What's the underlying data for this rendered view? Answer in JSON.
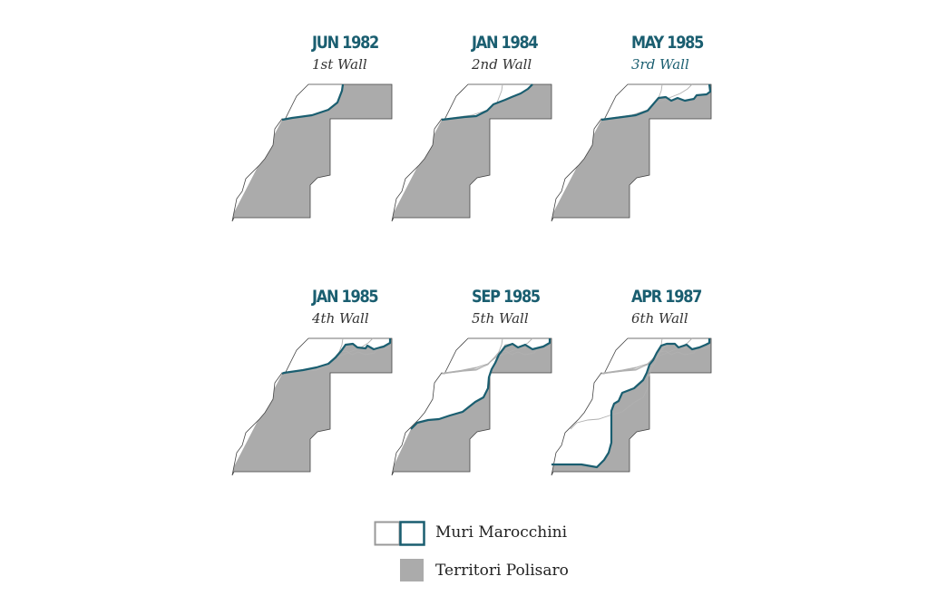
{
  "colors": {
    "accent": "#1a5e70",
    "territory": "#ababab",
    "outline": "#444444",
    "old_wall": "#b0b0b0",
    "text": "#333333"
  },
  "panels": [
    {
      "date": "JUN 1982",
      "wall": "1st Wall",
      "wall_color": "#333333",
      "stage": 1
    },
    {
      "date": "JAN 1984",
      "wall": "2nd Wall",
      "wall_color": "#333333",
      "stage": 2
    },
    {
      "date": "MAY 1985",
      "wall": "3rd Wall",
      "wall_color": "#1a5e70",
      "stage": 3
    },
    {
      "date": "JAN 1985",
      "wall": "4th Wall",
      "wall_color": "#333333",
      "stage": 4
    },
    {
      "date": "SEP 1985",
      "wall": "5th Wall",
      "wall_color": "#333333",
      "stage": 5
    },
    {
      "date": "APR 1987",
      "wall": "6th Wall",
      "wall_color": "#333333",
      "stage": 6
    }
  ],
  "legend": {
    "walls_label": "Muri Marocchini",
    "territory_label": "Territori Polisaro"
  }
}
